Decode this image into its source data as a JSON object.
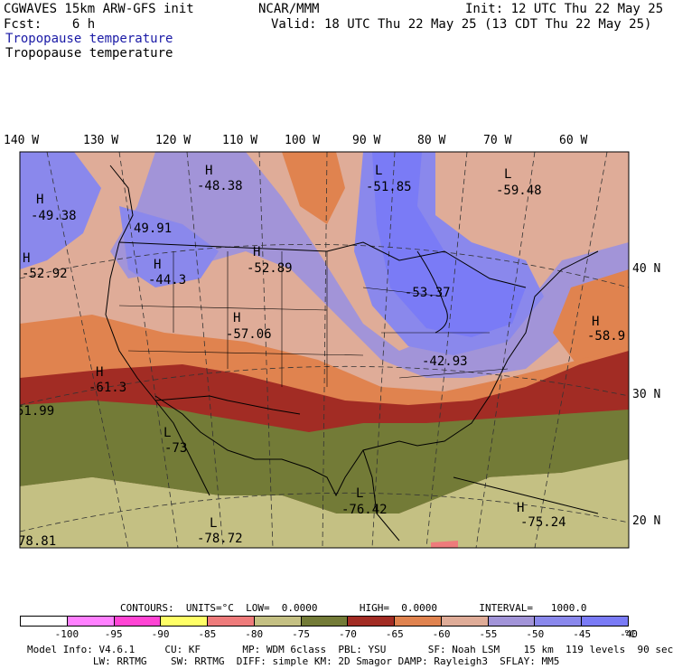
{
  "header": {
    "model_name": "CGWAVES 15km ARW-GFS init",
    "forecast": "Fcst:    6 h",
    "org": "NCAR/MMM",
    "init": "Init: 12 UTC Thu 22 May 25",
    "valid": "Valid: 18 UTC Thu 22 May 25 (13 CDT Thu 22 May 25)",
    "field_title_1": "Tropopause temperature",
    "field_title_2": "Tropopause temperature"
  },
  "map": {
    "lon_labels": [
      "140 W",
      "130 W",
      "120 W",
      "110 W",
      "100 W",
      "90 W",
      "80 W",
      "70 W",
      "60 W"
    ],
    "lat_labels": [
      "40 N",
      "30 N",
      "20 N"
    ],
    "centers": [
      {
        "type": "H",
        "value": "-48.38"
      },
      {
        "type": "L",
        "value": "-51.85"
      },
      {
        "type": "L",
        "value": "-59.48"
      },
      {
        "type": "H",
        "value": "-49.38"
      },
      {
        "type": "",
        "value": "49.91"
      },
      {
        "type": "H",
        "value": "-52.92"
      },
      {
        "type": "H",
        "value": "-44.3"
      },
      {
        "type": "H",
        "value": "-52.89"
      },
      {
        "type": "",
        "value": "-53.37"
      },
      {
        "type": "H",
        "value": "-57.06"
      },
      {
        "type": "H",
        "value": "-58.9"
      },
      {
        "type": "",
        "value": "-42.93"
      },
      {
        "type": "H",
        "value": "-61.3"
      },
      {
        "type": "",
        "value": "51.99"
      },
      {
        "type": "L",
        "value": "-73"
      },
      {
        "type": "L",
        "value": "-76.42"
      },
      {
        "type": "H",
        "value": "-75.24"
      },
      {
        "type": "L",
        "value": "-78.72"
      },
      {
        "type": "",
        "value": "78.81"
      }
    ],
    "colors": {
      "c_-100": "#ffffff",
      "c_-95": "#ff80ff",
      "c_-90": "#ff44d4",
      "c_-85": "#ffff66",
      "c_-80": "#ee7b7b",
      "c_-75": "#c4c083",
      "c_-70": "#737b37",
      "c_-65": "#a22c24",
      "c_-60": "#e0834f",
      "c_-55": "#dfac98",
      "c_-50": "#a294d8",
      "c_-45": "#8a88ec",
      "c_-40": "#7a7bf6"
    }
  },
  "contours": {
    "text": "CONTOURS:  UNITS=°C  LOW=  0.0000       HIGH=  0.0000       INTERVAL=   1000.0"
  },
  "colorbar": {
    "colors": [
      "#ffffff",
      "#ff80ff",
      "#ff44d4",
      "#ffff66",
      "#ee7b7b",
      "#c4c083",
      "#737b37",
      "#a22c24",
      "#e0834f",
      "#dfac98",
      "#a294d8",
      "#8a88ec",
      "#7a7bf6"
    ],
    "ticks": [
      "-100",
      "-95",
      "-90",
      "-85",
      "-80",
      "-75",
      "-70",
      "-65",
      "-60",
      "-55",
      "-50",
      "-45",
      "-40"
    ],
    "unit": "°C"
  },
  "model_info": {
    "line1": "Model Info: V4.6.1     CU: KF       MP: WDM 6class  PBL: YSU       SF: Noah LSM    15 km  119 levels  90 sec",
    "line2": "           LW: RRTMG    SW: RRTMG  DIFF: simple KM: 2D Smagor DAMP: Rayleigh3  SFLAY: MM5"
  }
}
